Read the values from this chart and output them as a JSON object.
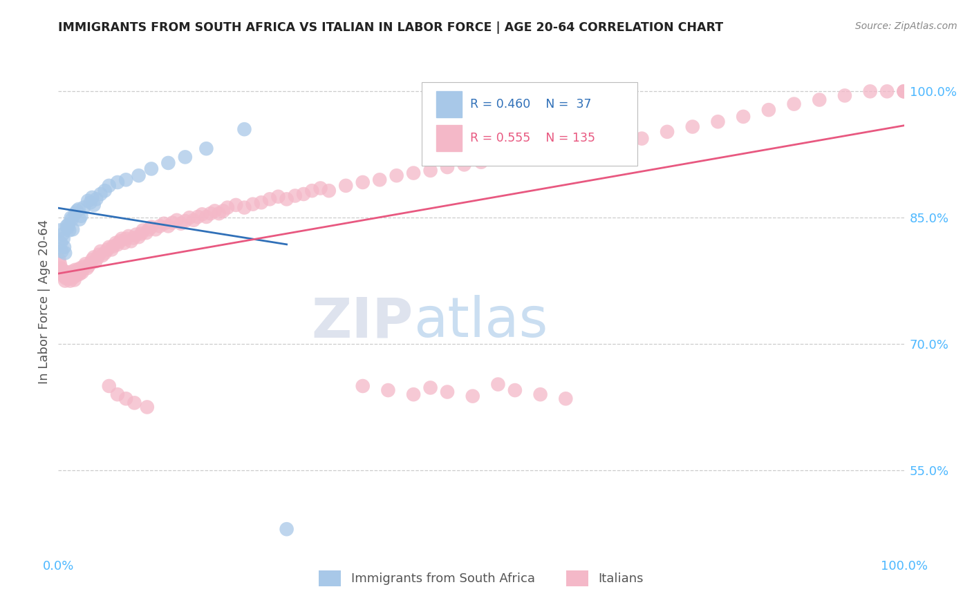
{
  "title": "IMMIGRANTS FROM SOUTH AFRICA VS ITALIAN IN LABOR FORCE | AGE 20-64 CORRELATION CHART",
  "source_text": "Source: ZipAtlas.com",
  "ylabel": "In Labor Force | Age 20-64",
  "xlim": [
    0.0,
    1.0
  ],
  "ylim": [
    0.45,
    1.05
  ],
  "x_tick_labels": [
    "0.0%",
    "100.0%"
  ],
  "y_tick_labels": [
    "55.0%",
    "70.0%",
    "85.0%",
    "100.0%"
  ],
  "y_tick_positions": [
    0.55,
    0.7,
    0.85,
    1.0
  ],
  "legend_r_blue": "R = 0.460",
  "legend_n_blue": "N =  37",
  "legend_r_pink": "R = 0.555",
  "legend_n_pink": "N = 135",
  "blue_color": "#a8c8e8",
  "pink_color": "#f4b8c8",
  "blue_line_color": "#3070b8",
  "pink_line_color": "#e85880",
  "axis_tick_color": "#4db8ff",
  "watermark_color": "#c8dff0",
  "background_color": "#ffffff",
  "sa_x": [
    0.002,
    0.003,
    0.004,
    0.005,
    0.006,
    0.007,
    0.008,
    0.01,
    0.011,
    0.012,
    0.013,
    0.015,
    0.016,
    0.017,
    0.02,
    0.022,
    0.024,
    0.025,
    0.027,
    0.03,
    0.035,
    0.038,
    0.04,
    0.042,
    0.045,
    0.05,
    0.055,
    0.06,
    0.07,
    0.08,
    0.095,
    0.11,
    0.13,
    0.15,
    0.175,
    0.22,
    0.27
  ],
  "sa_y": [
    0.835,
    0.82,
    0.81,
    0.83,
    0.825,
    0.815,
    0.808,
    0.84,
    0.838,
    0.842,
    0.835,
    0.85,
    0.848,
    0.836,
    0.855,
    0.858,
    0.86,
    0.848,
    0.852,
    0.862,
    0.87,
    0.868,
    0.874,
    0.865,
    0.872,
    0.878,
    0.882,
    0.888,
    0.892,
    0.895,
    0.9,
    0.908,
    0.915,
    0.922,
    0.932,
    0.955,
    0.48
  ],
  "it_x": [
    0.001,
    0.002,
    0.003,
    0.004,
    0.005,
    0.006,
    0.007,
    0.008,
    0.009,
    0.01,
    0.011,
    0.012,
    0.013,
    0.014,
    0.015,
    0.016,
    0.017,
    0.018,
    0.019,
    0.02,
    0.021,
    0.022,
    0.023,
    0.024,
    0.025,
    0.026,
    0.027,
    0.028,
    0.03,
    0.032,
    0.034,
    0.036,
    0.038,
    0.04,
    0.042,
    0.044,
    0.046,
    0.048,
    0.05,
    0.052,
    0.055,
    0.058,
    0.06,
    0.063,
    0.065,
    0.068,
    0.07,
    0.073,
    0.075,
    0.078,
    0.08,
    0.083,
    0.086,
    0.089,
    0.092,
    0.095,
    0.098,
    0.1,
    0.104,
    0.107,
    0.11,
    0.115,
    0.12,
    0.125,
    0.13,
    0.135,
    0.14,
    0.145,
    0.15,
    0.155,
    0.16,
    0.165,
    0.17,
    0.175,
    0.18,
    0.185,
    0.19,
    0.195,
    0.2,
    0.21,
    0.22,
    0.23,
    0.24,
    0.25,
    0.26,
    0.27,
    0.28,
    0.29,
    0.3,
    0.31,
    0.32,
    0.34,
    0.36,
    0.38,
    0.4,
    0.42,
    0.44,
    0.46,
    0.48,
    0.5,
    0.53,
    0.55,
    0.58,
    0.61,
    0.64,
    0.66,
    0.69,
    0.72,
    0.75,
    0.78,
    0.81,
    0.84,
    0.87,
    0.9,
    0.93,
    0.96,
    0.98,
    1.0,
    1.0,
    1.0,
    0.06,
    0.07,
    0.08,
    0.09,
    0.105,
    0.36,
    0.39,
    0.42,
    0.44,
    0.46,
    0.49,
    0.52,
    0.54,
    0.57,
    0.6
  ],
  "it_y": [
    0.8,
    0.795,
    0.79,
    0.785,
    0.788,
    0.782,
    0.78,
    0.775,
    0.778,
    0.782,
    0.785,
    0.78,
    0.778,
    0.775,
    0.783,
    0.786,
    0.782,
    0.779,
    0.776,
    0.788,
    0.785,
    0.782,
    0.788,
    0.785,
    0.783,
    0.79,
    0.787,
    0.785,
    0.792,
    0.795,
    0.79,
    0.793,
    0.796,
    0.8,
    0.803,
    0.798,
    0.802,
    0.806,
    0.81,
    0.805,
    0.808,
    0.812,
    0.815,
    0.812,
    0.816,
    0.82,
    0.818,
    0.822,
    0.825,
    0.82,
    0.825,
    0.828,
    0.822,
    0.826,
    0.83,
    0.827,
    0.831,
    0.835,
    0.832,
    0.836,
    0.839,
    0.836,
    0.84,
    0.843,
    0.84,
    0.844,
    0.847,
    0.843,
    0.846,
    0.85,
    0.847,
    0.851,
    0.854,
    0.851,
    0.855,
    0.858,
    0.855,
    0.858,
    0.862,
    0.865,
    0.862,
    0.866,
    0.868,
    0.872,
    0.875,
    0.872,
    0.876,
    0.878,
    0.882,
    0.885,
    0.882,
    0.888,
    0.892,
    0.895,
    0.9,
    0.903,
    0.906,
    0.91,
    0.913,
    0.916,
    0.92,
    0.924,
    0.928,
    0.932,
    0.936,
    0.94,
    0.944,
    0.952,
    0.958,
    0.964,
    0.97,
    0.978,
    0.985,
    0.99,
    0.995,
    1.0,
    1.0,
    1.0,
    1.0,
    1.0,
    0.65,
    0.64,
    0.635,
    0.63,
    0.625,
    0.65,
    0.645,
    0.64,
    0.648,
    0.643,
    0.638,
    0.652,
    0.645,
    0.64,
    0.635
  ]
}
